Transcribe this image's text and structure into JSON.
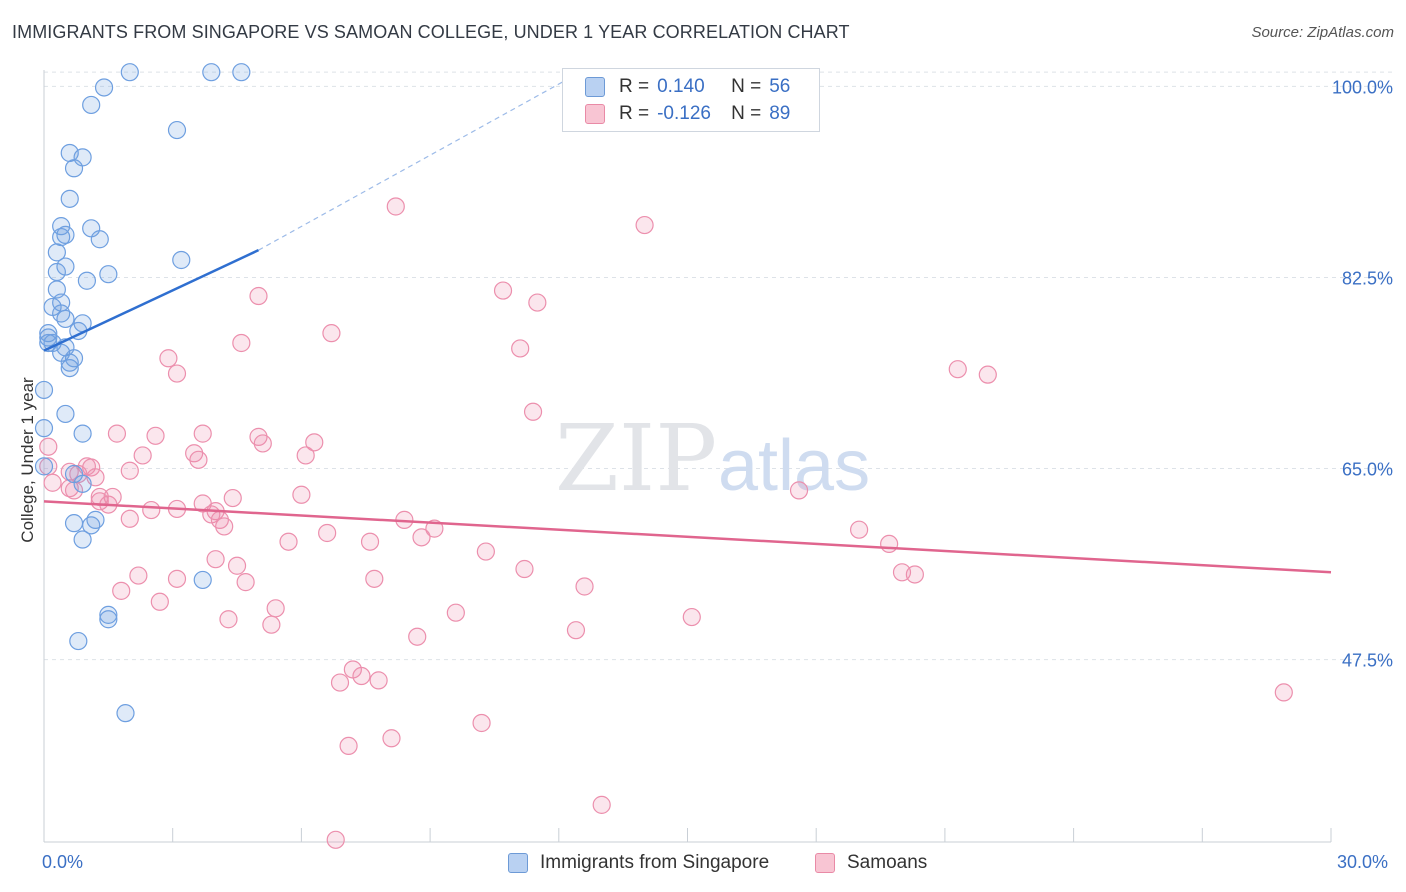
{
  "title": "IMMIGRANTS FROM SINGAPORE VS SAMOAN COLLEGE, UNDER 1 YEAR CORRELATION CHART",
  "source": "Source: ZipAtlas.com",
  "watermark": {
    "zip": "ZIP",
    "atlas": "atlas"
  },
  "legend": {
    "r_label": "R =",
    "n_label": "N =",
    "series": [
      {
        "r": "0.140",
        "n": "56",
        "fill": "#b9d1f2",
        "stroke": "#6d9ad6"
      },
      {
        "r": "-0.126",
        "n": "89",
        "fill": "#f8c5d3",
        "stroke": "#e98aa6"
      }
    ]
  },
  "bottom_legend": [
    "Immigrants from Singapore",
    "Samoans"
  ],
  "colors": {
    "blue_point": "#6e9fe0",
    "pink_point": "#ec8fad",
    "blue_line": "#2f6fd0",
    "pink_line": "#e0658e",
    "axis_text": "#3a6fc4"
  },
  "chart_data": {
    "type": "scatter",
    "title": "IMMIGRANTS FROM SINGAPORE VS SAMOAN COLLEGE, UNDER 1 YEAR CORRELATION CHART",
    "xlabel": "",
    "ylabel": "College, Under 1 year",
    "xlim": [
      0,
      30
    ],
    "ylim": [
      30.8,
      101.5
    ],
    "x_tick_labels": [
      "0.0%",
      "30.0%"
    ],
    "y_ticks": [
      47.5,
      65.0,
      82.5,
      100.0
    ],
    "y_tick_labels": [
      "47.5%",
      "65.0%",
      "82.5%",
      "100.0%"
    ],
    "grid": true,
    "legend_position": "top-center",
    "series": [
      {
        "name": "Immigrants from Singapore",
        "R": 0.14,
        "N": 56,
        "trend": {
          "x": [
            0.0,
            5.0
          ],
          "y": [
            75.8,
            85.0
          ],
          "dashed_to": [
            12.5,
            101.3
          ]
        },
        "points": [
          [
            2.0,
            101.3
          ],
          [
            3.9,
            101.3
          ],
          [
            4.6,
            101.3
          ],
          [
            1.4,
            99.9
          ],
          [
            1.1,
            98.3
          ],
          [
            3.1,
            96.0
          ],
          [
            0.6,
            93.9
          ],
          [
            0.9,
            93.5
          ],
          [
            0.7,
            92.5
          ],
          [
            0.6,
            89.7
          ],
          [
            0.4,
            87.2
          ],
          [
            1.1,
            87.0
          ],
          [
            0.5,
            86.4
          ],
          [
            1.3,
            86.0
          ],
          [
            0.4,
            86.2
          ],
          [
            0.3,
            84.8
          ],
          [
            3.2,
            84.1
          ],
          [
            0.5,
            83.5
          ],
          [
            0.3,
            83.0
          ],
          [
            1.5,
            82.8
          ],
          [
            1.0,
            82.2
          ],
          [
            0.3,
            81.4
          ],
          [
            0.4,
            80.2
          ],
          [
            0.2,
            79.8
          ],
          [
            0.4,
            79.2
          ],
          [
            0.5,
            78.7
          ],
          [
            0.9,
            78.3
          ],
          [
            0.8,
            77.6
          ],
          [
            0.1,
            77.4
          ],
          [
            0.1,
            77.0
          ],
          [
            0.1,
            76.5
          ],
          [
            0.2,
            76.5
          ],
          [
            0.5,
            76.1
          ],
          [
            0.4,
            75.6
          ],
          [
            0.7,
            75.1
          ],
          [
            0.6,
            74.7
          ],
          [
            0.6,
            74.2
          ],
          [
            0.0,
            72.2
          ],
          [
            0.5,
            70.0
          ],
          [
            0.9,
            68.2
          ],
          [
            0.0,
            68.7
          ],
          [
            0.0,
            65.2
          ],
          [
            0.7,
            64.5
          ],
          [
            0.9,
            63.6
          ],
          [
            0.7,
            60.0
          ],
          [
            1.2,
            60.3
          ],
          [
            1.1,
            59.8
          ],
          [
            0.9,
            58.5
          ],
          [
            3.7,
            54.8
          ],
          [
            1.5,
            51.6
          ],
          [
            1.5,
            51.2
          ],
          [
            0.8,
            49.2
          ],
          [
            1.9,
            42.6
          ]
        ]
      },
      {
        "name": "Samoans",
        "R": -0.126,
        "N": 89,
        "trend": {
          "x": [
            0.0,
            30.0
          ],
          "y": [
            62.0,
            55.5
          ]
        },
        "points": [
          [
            8.2,
            89.0
          ],
          [
            14.0,
            87.3
          ],
          [
            10.7,
            81.3
          ],
          [
            11.5,
            80.2
          ],
          [
            5.0,
            80.8
          ],
          [
            6.7,
            77.4
          ],
          [
            4.6,
            76.5
          ],
          [
            11.1,
            76.0
          ],
          [
            2.9,
            75.1
          ],
          [
            3.1,
            73.7
          ],
          [
            21.3,
            74.1
          ],
          [
            22.0,
            73.6
          ],
          [
            11.4,
            70.2
          ],
          [
            0.1,
            67.0
          ],
          [
            0.1,
            65.2
          ],
          [
            0.2,
            63.7
          ],
          [
            1.7,
            68.2
          ],
          [
            2.6,
            68.0
          ],
          [
            3.7,
            68.2
          ],
          [
            5.0,
            67.9
          ],
          [
            5.1,
            67.3
          ],
          [
            6.3,
            67.4
          ],
          [
            3.5,
            66.4
          ],
          [
            2.3,
            66.2
          ],
          [
            6.1,
            66.2
          ],
          [
            3.6,
            65.8
          ],
          [
            1.0,
            65.2
          ],
          [
            1.1,
            65.1
          ],
          [
            0.6,
            64.7
          ],
          [
            0.8,
            64.5
          ],
          [
            1.2,
            64.2
          ],
          [
            2.0,
            64.8
          ],
          [
            0.6,
            63.2
          ],
          [
            0.7,
            63.0
          ],
          [
            1.3,
            62.4
          ],
          [
            1.6,
            62.4
          ],
          [
            1.3,
            62.0
          ],
          [
            1.5,
            61.7
          ],
          [
            6.0,
            62.6
          ],
          [
            17.6,
            63.0
          ],
          [
            2.5,
            61.2
          ],
          [
            3.1,
            61.3
          ],
          [
            3.7,
            61.8
          ],
          [
            4.0,
            61.1
          ],
          [
            4.4,
            62.3
          ],
          [
            3.9,
            60.8
          ],
          [
            4.1,
            60.3
          ],
          [
            2.0,
            60.4
          ],
          [
            8.4,
            60.3
          ],
          [
            4.2,
            59.7
          ],
          [
            9.1,
            59.5
          ],
          [
            6.6,
            59.1
          ],
          [
            8.8,
            58.7
          ],
          [
            7.6,
            58.3
          ],
          [
            5.7,
            58.3
          ],
          [
            19.0,
            59.4
          ],
          [
            19.7,
            58.1
          ],
          [
            10.3,
            57.4
          ],
          [
            4.0,
            56.7
          ],
          [
            4.5,
            56.1
          ],
          [
            11.2,
            55.8
          ],
          [
            20.0,
            55.5
          ],
          [
            20.3,
            55.3
          ],
          [
            2.2,
            55.2
          ],
          [
            3.1,
            54.9
          ],
          [
            7.7,
            54.9
          ],
          [
            4.7,
            54.6
          ],
          [
            12.6,
            54.2
          ],
          [
            1.8,
            53.8
          ],
          [
            2.7,
            52.8
          ],
          [
            5.4,
            52.2
          ],
          [
            9.6,
            51.8
          ],
          [
            15.1,
            51.4
          ],
          [
            4.3,
            51.2
          ],
          [
            5.3,
            50.7
          ],
          [
            12.4,
            50.2
          ],
          [
            8.7,
            49.6
          ],
          [
            7.2,
            46.6
          ],
          [
            7.4,
            46.0
          ],
          [
            7.8,
            45.6
          ],
          [
            6.9,
            45.4
          ],
          [
            28.9,
            44.5
          ],
          [
            10.2,
            41.7
          ],
          [
            8.1,
            40.3
          ],
          [
            7.1,
            39.6
          ],
          [
            13.0,
            34.2
          ],
          [
            6.8,
            31.0
          ]
        ]
      }
    ]
  }
}
